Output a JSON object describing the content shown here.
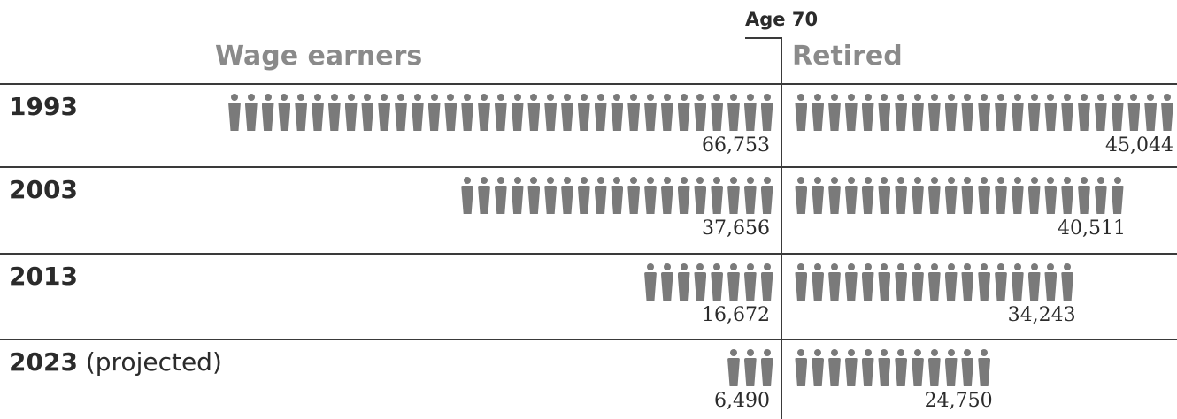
{
  "chart_data": {
    "type": "bar",
    "axis_label": "Age 70",
    "series_headers": [
      "Wage earners",
      "Retired"
    ],
    "rows": [
      {
        "year": "1993",
        "suffix": "",
        "wage_earners": 66753,
        "retired": 45044,
        "wage_label": "66,753",
        "retired_label": "45,044"
      },
      {
        "year": "2003",
        "suffix": "",
        "wage_earners": 37656,
        "retired": 40511,
        "wage_label": "37,656",
        "retired_label": "40,511"
      },
      {
        "year": "2013",
        "suffix": "",
        "wage_earners": 16672,
        "retired": 34243,
        "wage_label": "16,672",
        "retired_label": "34,243"
      },
      {
        "year": "2023",
        "suffix": " (projected)",
        "wage_earners": 6490,
        "retired": 24750,
        "wage_label": "6,490",
        "retired_label": "24,750"
      }
    ],
    "colors": {
      "icon": "#7a7a7a",
      "header": "#8a8a8a",
      "rule": "#3a3a3a"
    }
  }
}
